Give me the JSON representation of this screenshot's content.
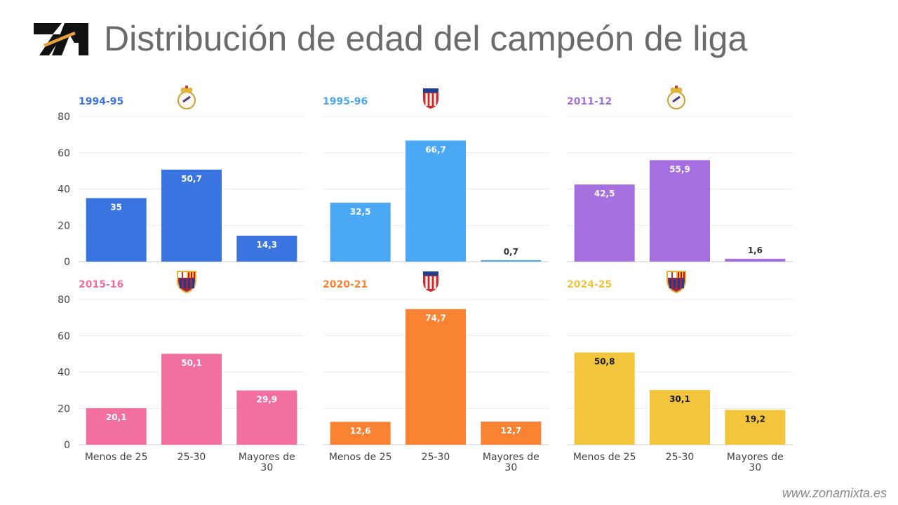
{
  "header": {
    "title": "Distribución de edad del campeón de liga"
  },
  "footer": {
    "website": "www.zonamixta.es"
  },
  "chart_data": {
    "type": "bar",
    "categories": [
      [
        "Menos de 25"
      ],
      [
        "25-30"
      ],
      [
        "Mayores de",
        "30"
      ]
    ],
    "ylim": [
      0,
      80
    ],
    "yticks": [
      0,
      20,
      40,
      60,
      80
    ],
    "panels": [
      {
        "season": "1994-95",
        "club": "Real Madrid",
        "color": "#3a74e0",
        "label_color": "#ffffff",
        "values": [
          35,
          50.7,
          14.3
        ],
        "labels": [
          "35",
          "50,7",
          "14,3"
        ]
      },
      {
        "season": "1995-96",
        "club": "Atlético de Madrid",
        "color": "#4aa8f5",
        "label_color": "#ffffff",
        "values": [
          32.5,
          66.7,
          0.7
        ],
        "labels": [
          "32,5",
          "66,7",
          "0,7"
        ]
      },
      {
        "season": "2011-12",
        "club": "Real Madrid",
        "color": "#a56fe0",
        "label_color": "#ffffff",
        "values": [
          42.5,
          55.9,
          1.6
        ],
        "labels": [
          "42,5",
          "55,9",
          "1,6"
        ]
      },
      {
        "season": "2015-16",
        "club": "FC Barcelona",
        "color": "#f2709f",
        "label_color": "#ffffff",
        "values": [
          20.1,
          50.1,
          29.9
        ],
        "labels": [
          "20,1",
          "50,1",
          "29,9"
        ]
      },
      {
        "season": "2020-21",
        "club": "Atlético de Madrid",
        "color": "#fa8233",
        "label_color": "#ffffff",
        "values": [
          12.6,
          74.7,
          12.7
        ],
        "labels": [
          "12,6",
          "74,7",
          "12,7"
        ]
      },
      {
        "season": "2024-25",
        "club": "FC Barcelona",
        "color": "#f2c53d",
        "label_color": "#1a1a1a",
        "values": [
          50.8,
          30.1,
          19.2
        ],
        "labels": [
          "50,8",
          "30,1",
          "19,2"
        ]
      }
    ]
  }
}
